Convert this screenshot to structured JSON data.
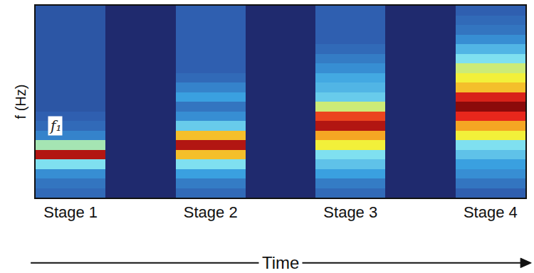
{
  "chart_data": {
    "type": "heatmap",
    "categories": [
      "Stage 1",
      null,
      "Stage 2",
      null,
      "Stage 3",
      null,
      "Stage 4"
    ],
    "z": [
      [
        0.15,
        0.18,
        0.25,
        0.45,
        0.95,
        0.5,
        0.22,
        0.15,
        0.12,
        0.1,
        0.1,
        0.1,
        0.1,
        0.1,
        0.1,
        0.1,
        0.1,
        0.1,
        0.1,
        0.1
      ],
      [
        0,
        0,
        0,
        0,
        0,
        0,
        0,
        0,
        0,
        0,
        0,
        0,
        0,
        0,
        0,
        0,
        0,
        0,
        0,
        0
      ],
      [
        0.15,
        0.2,
        0.3,
        0.45,
        0.7,
        0.95,
        0.7,
        0.4,
        0.25,
        0.18,
        0.3,
        0.22,
        0.15,
        0.12,
        0.12,
        0.12,
        0.12,
        0.12,
        0.12,
        0.12
      ],
      [
        0,
        0,
        0,
        0,
        0,
        0,
        0,
        0,
        0,
        0,
        0,
        0,
        0,
        0,
        0,
        0,
        0,
        0,
        0,
        0
      ],
      [
        0.15,
        0.2,
        0.3,
        0.38,
        0.45,
        0.6,
        0.75,
        0.95,
        0.85,
        0.55,
        0.4,
        0.35,
        0.32,
        0.25,
        0.2,
        0.15,
        0.12,
        0.12,
        0.12,
        0.12
      ],
      [
        0,
        0,
        0,
        0,
        0,
        0,
        0,
        0,
        0,
        0,
        0,
        0,
        0,
        0,
        0,
        0,
        0,
        0,
        0,
        0
      ],
      [
        0.12,
        0.18,
        0.25,
        0.3,
        0.38,
        0.45,
        0.6,
        0.75,
        0.88,
        1.0,
        0.9,
        0.7,
        0.6,
        0.55,
        0.45,
        0.35,
        0.25,
        0.18,
        0.15,
        0.12
      ]
    ],
    "zlim": [
      0,
      1
    ],
    "x_label": "Time",
    "y_label": "f (Hz)",
    "annotations": [
      {
        "category": "Stage 1",
        "row": 7,
        "text": "f₁"
      }
    ],
    "tick_labels": "x"
  }
}
